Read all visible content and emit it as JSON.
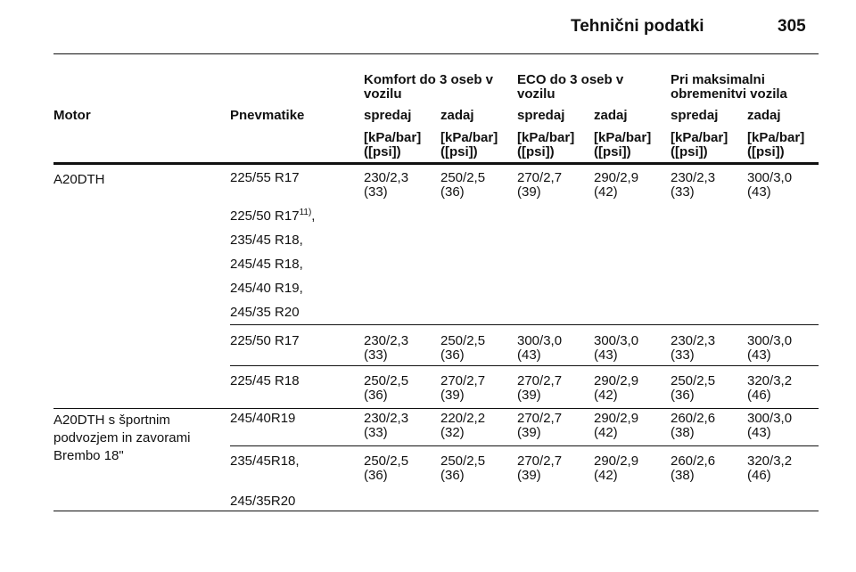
{
  "header": {
    "title": "Tehnični podatki",
    "page": "305"
  },
  "table": {
    "group_headers": [
      "Komfort do 3 oseb v vozilu",
      "ECO do 3 oseb v vozilu",
      "Pri maksimalni obremenitvi vozila"
    ],
    "columns": [
      "Motor",
      "Pnevmatike",
      "spredaj",
      "zadaj",
      "spredaj",
      "zadaj",
      "spredaj",
      "zadaj"
    ],
    "units": [
      "[kPa/bar] ([psi])",
      "[kPa/bar] ([psi])",
      "[kPa/bar] ([psi])",
      "[kPa/bar] ([psi])",
      "[kPa/bar] ([psi])",
      "[kPa/bar] ([psi])"
    ],
    "groups": [
      {
        "motor": "A20DTH",
        "rows": [
          {
            "tires": [
              "225/55 R17",
              {
                "text": "225/50 R17",
                "note": "11)",
                "suffix": ","
              },
              "235/45 R18,",
              "245/45 R18,",
              "245/40 R19,",
              "245/35 R20"
            ],
            "values": [
              "230/2,3 (33)",
              "250/2,5 (36)",
              "270/2,7 (39)",
              "290/2,9 (42)",
              "230/2,3 (33)",
              "300/3,0 (43)"
            ]
          },
          {
            "tires": [
              "225/50 R17"
            ],
            "values": [
              "230/2,3 (33)",
              "250/2,5 (36)",
              "300/3,0 (43)",
              "300/3,0 (43)",
              "230/2,3 (33)",
              "300/3,0 (43)"
            ]
          },
          {
            "tires": [
              "225/45 R18"
            ],
            "values": [
              "250/2,5 (36)",
              "270/2,7 (39)",
              "270/2,7 (39)",
              "290/2,9 (42)",
              "250/2,5 (36)",
              "320/3,2 (46)"
            ]
          }
        ]
      },
      {
        "motor": "A20DTH s športnim podvozjem in zavorami Brembo 18\"",
        "rows": [
          {
            "tires": [
              "245/40R19"
            ],
            "values": [
              "230/2,3 (33)",
              "220/2,2 (32)",
              "270/2,7 (39)",
              "290/2,9 (42)",
              "260/2,6 (38)",
              "300/3,0 (43)"
            ]
          },
          {
            "tires": [
              "235/45R18,",
              "245/35R20"
            ],
            "values": [
              "250/2,5 (36)",
              "250/2,5 (36)",
              "270/2,7 (39)",
              "290/2,9 (42)",
              "260/2,6 (38)",
              "320/3,2 (46)"
            ]
          }
        ]
      }
    ]
  }
}
